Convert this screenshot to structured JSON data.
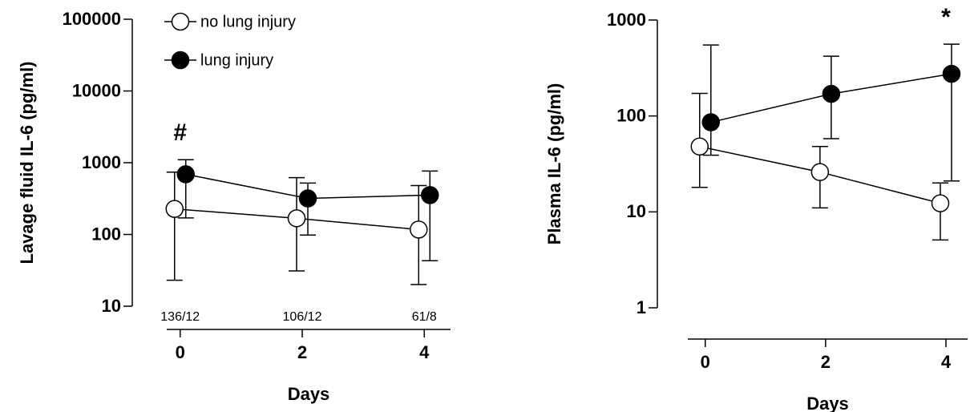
{
  "chart_data": [
    {
      "type": "line",
      "y_label": "Lavage fluid IL-6 (pg/ml)",
      "x_label": "Days",
      "x": [
        0,
        2,
        4
      ],
      "xlim": [
        -0.22,
        4.43
      ],
      "xticks": [
        0,
        2,
        4
      ],
      "ylim": [
        10,
        100000
      ],
      "yticks": [
        10,
        100,
        1000,
        10000,
        100000
      ],
      "log_y": true,
      "legend": "top-left",
      "series": [
        {
          "name": "no lung injury",
          "color": "#ffffff",
          "values": [
            227,
            168,
            117
          ],
          "err_lower": [
            23,
            31,
            20
          ],
          "err_upper": [
            740,
            620,
            480
          ]
        },
        {
          "name": "lung injury",
          "color": "#000000",
          "values": [
            690,
            318,
            354
          ],
          "err_lower": [
            170,
            98,
            43
          ],
          "err_upper": [
            1100,
            520,
            765
          ]
        }
      ],
      "n_labels": [
        "136/12",
        "106/12",
        "61/8"
      ],
      "significance": [
        "#",
        null,
        null
      ]
    },
    {
      "type": "line",
      "y_label": "Plasma IL-6 (pg/ml)",
      "x_label": "Days",
      "x": [
        0,
        2,
        4
      ],
      "xlim": [
        -0.29,
        4.36
      ],
      "xticks": [
        0,
        2,
        4
      ],
      "ylim": [
        1,
        1000
      ],
      "yticks": [
        1,
        10,
        100,
        1000
      ],
      "log_y": true,
      "series": [
        {
          "name": "no lung injury",
          "color": "#ffffff",
          "values": [
            48,
            26,
            12.3
          ],
          "err_lower": [
            18,
            11,
            5.1
          ],
          "err_upper": [
            172,
            48,
            20
          ]
        },
        {
          "name": "lung injury",
          "color": "#000000",
          "values": [
            86,
            170,
            275
          ],
          "err_lower": [
            39,
            58,
            21
          ],
          "err_upper": [
            550,
            420,
            560
          ]
        }
      ],
      "significance": [
        null,
        null,
        "*"
      ]
    }
  ]
}
